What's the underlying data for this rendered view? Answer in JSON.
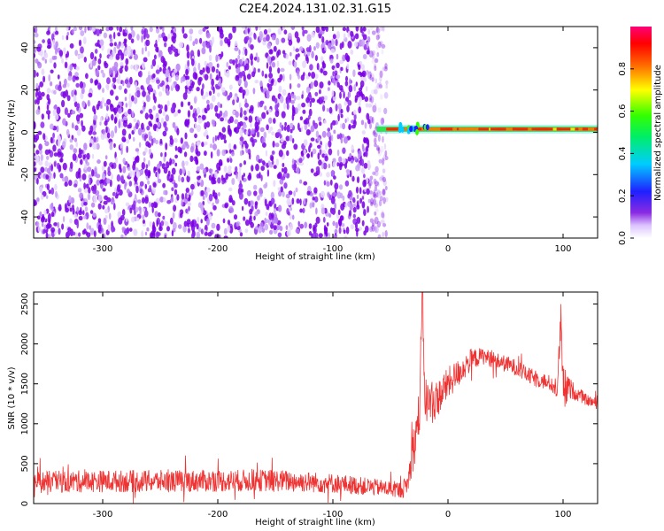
{
  "page_title": "C2E4.2024.131.02.31.G15",
  "colors": {
    "series_snr": "#ee3333",
    "noise_purple": "#7a00e6",
    "frame": "#000000"
  },
  "chart_data": [
    {
      "type": "heatmap",
      "title": "C2E4.2024.131.02.31.G15",
      "xlabel": "Height of straight line (km)",
      "ylabel": "Frequency (Hz)",
      "xlim": [
        -360,
        130
      ],
      "ylim": [
        -50,
        50
      ],
      "x_ticks": [
        -300,
        -200,
        -100,
        0,
        100
      ],
      "y_ticks": [
        -40,
        -20,
        0,
        20,
        40
      ],
      "colorbar": {
        "label": "Normalized spectral amplitude",
        "range": [
          0.0,
          1.0
        ],
        "ticks": [
          0.0,
          0.2,
          0.4,
          0.6,
          0.8
        ],
        "colormap": "rainbow (white-violet-blue-cyan-green-yellow-red-magenta)"
      },
      "features": [
        {
          "kind": "broadband noise",
          "x_range": [
            -360,
            -53
          ],
          "freq_range": [
            -50,
            50
          ],
          "amplitude": 0.1
        },
        {
          "kind": "signal line",
          "x_range": [
            -62,
            130
          ],
          "frequency": 1.5,
          "amplitude_range": [
            0.6,
            1.0
          ]
        }
      ],
      "grid": false
    },
    {
      "type": "line",
      "xlabel": "Height of straight line (km)",
      "ylabel": "SNR (10 * v/v)",
      "xlim": [
        -360,
        130
      ],
      "ylim": [
        0,
        2650
      ],
      "x_ticks": [
        -300,
        -200,
        -100,
        0,
        100
      ],
      "y_ticks": [
        0,
        500,
        1000,
        1500,
        2000,
        2500
      ],
      "grid": false,
      "series": [
        {
          "x": [
            -360,
            -300,
            -250,
            -200,
            -150,
            -100,
            -60,
            -40,
            -35,
            -30,
            -25,
            -22,
            -20,
            -15,
            -10,
            0,
            10,
            20,
            30,
            40,
            50,
            60,
            70,
            80,
            90,
            95,
            98,
            100,
            105,
            110,
            120,
            130
          ],
          "y": [
            270,
            280,
            280,
            285,
            290,
            255,
            200,
            170,
            250,
            700,
            1100,
            2600,
            1300,
            1250,
            1300,
            1500,
            1650,
            1800,
            1850,
            1800,
            1750,
            1700,
            1600,
            1550,
            1500,
            1400,
            2300,
            1400,
            1450,
            1400,
            1300,
            1250
          ],
          "noise_amplitude": [
            200,
            200,
            200,
            200,
            200,
            180,
            150,
            150,
            200,
            400,
            500,
            600,
            450,
            400,
            350,
            300,
            250,
            200,
            150,
            150,
            150,
            150,
            150,
            150,
            150,
            150,
            400,
            500,
            200,
            150,
            100,
            100
          ]
        }
      ]
    }
  ]
}
